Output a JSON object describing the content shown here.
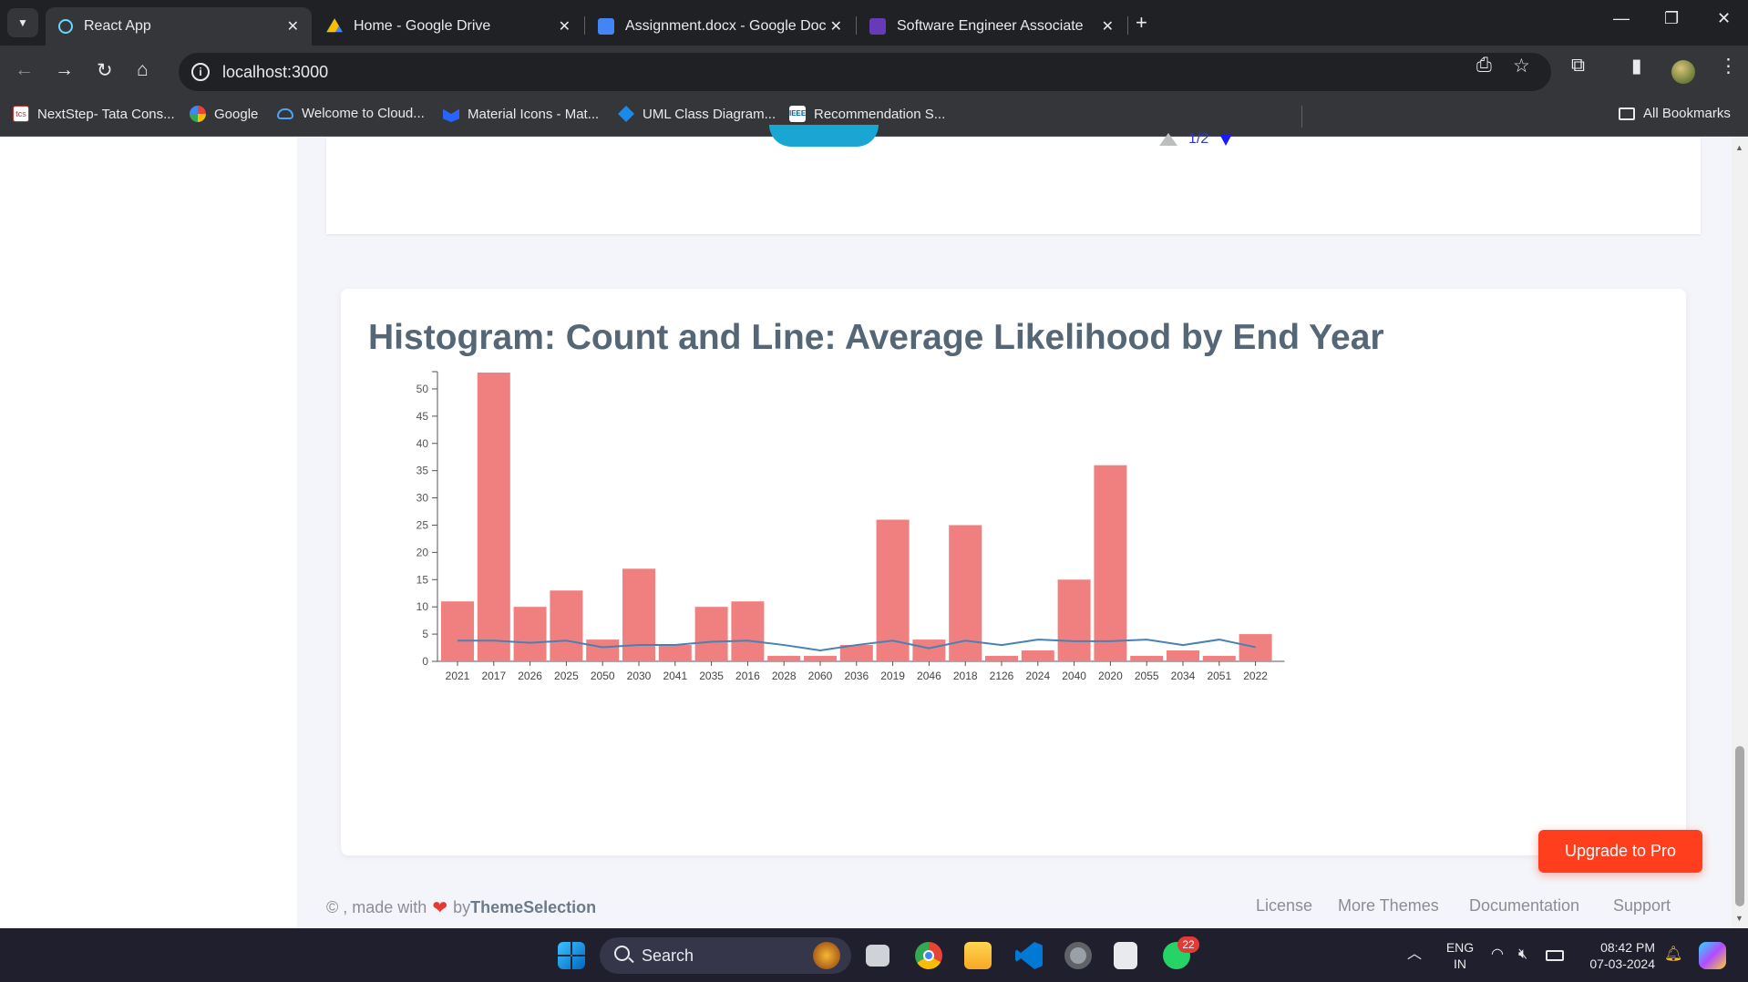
{
  "browser": {
    "tabs": [
      {
        "title": "React App",
        "active": true,
        "icon": "react-icon"
      },
      {
        "title": "Home - Google Drive",
        "active": false,
        "icon": "google-drive-icon"
      },
      {
        "title": "Assignment.docx - Google Doc",
        "active": false,
        "icon": "google-docs-icon"
      },
      {
        "title": "Software Engineer Associate",
        "active": false,
        "icon": "google-forms-icon"
      }
    ],
    "url": "localhost:3000",
    "bookmarks": [
      {
        "label": "NextStep- Tata Cons...",
        "icon": "tcs-icon"
      },
      {
        "label": "Google",
        "icon": "google-icon"
      },
      {
        "label": "Welcome to Cloud...",
        "icon": "cloud-icon"
      },
      {
        "label": "Material Icons - Mat...",
        "icon": "material-icon"
      },
      {
        "label": "UML Class Diagram...",
        "icon": "uml-icon"
      },
      {
        "label": "Recommendation S...",
        "icon": "ieee-icon"
      }
    ],
    "all_bookmarks": "All Bookmarks"
  },
  "previous_card": {
    "pager_text": "1/2"
  },
  "histogram_card": {
    "title": "Histogram: Count and Line: Average Likelihood by End Year"
  },
  "chart_data": {
    "type": "bar",
    "title": "Histogram: Count and Line: Average Likelihood by End Year",
    "categories": [
      "2021",
      "2017",
      "2026",
      "2025",
      "2050",
      "2030",
      "2041",
      "2035",
      "2016",
      "2028",
      "2060",
      "2036",
      "2019",
      "2046",
      "2018",
      "2126",
      "2024",
      "2040",
      "2020",
      "2055",
      "2034",
      "2051",
      "2022"
    ],
    "series": [
      {
        "type": "bar",
        "color": "#f08080",
        "values": [
          11,
          53,
          10,
          13,
          4,
          17,
          3,
          10,
          11,
          1,
          1,
          3,
          26,
          4,
          25,
          1,
          2,
          15,
          36,
          1,
          2,
          1,
          5
        ]
      },
      {
        "type": "line",
        "color": "#4682b4",
        "values": [
          3.8,
          3.8,
          3.4,
          3.8,
          2.6,
          3.0,
          3.0,
          3.6,
          3.8,
          3.0,
          2.0,
          3.0,
          3.8,
          2.4,
          3.8,
          3.0,
          4.0,
          3.7,
          3.7,
          4.0,
          3.0,
          4.0,
          2.6
        ]
      }
    ],
    "ylim": [
      0,
      53
    ],
    "yticks": [
      0,
      5,
      10,
      15,
      20,
      25,
      30,
      35,
      40,
      45,
      50
    ]
  },
  "upgrade_button": "Upgrade to Pro",
  "footer": {
    "prefix": "© , made with",
    "by": "by",
    "brand": "ThemeSelection",
    "links": [
      "License",
      "More Themes",
      "Documentation",
      "Support"
    ]
  },
  "taskbar": {
    "search_label": "Search",
    "whatsapp_badge": "22",
    "lang_top": "ENG",
    "lang_bottom": "IN",
    "time": "08:42 PM",
    "date": "07-03-2024"
  }
}
